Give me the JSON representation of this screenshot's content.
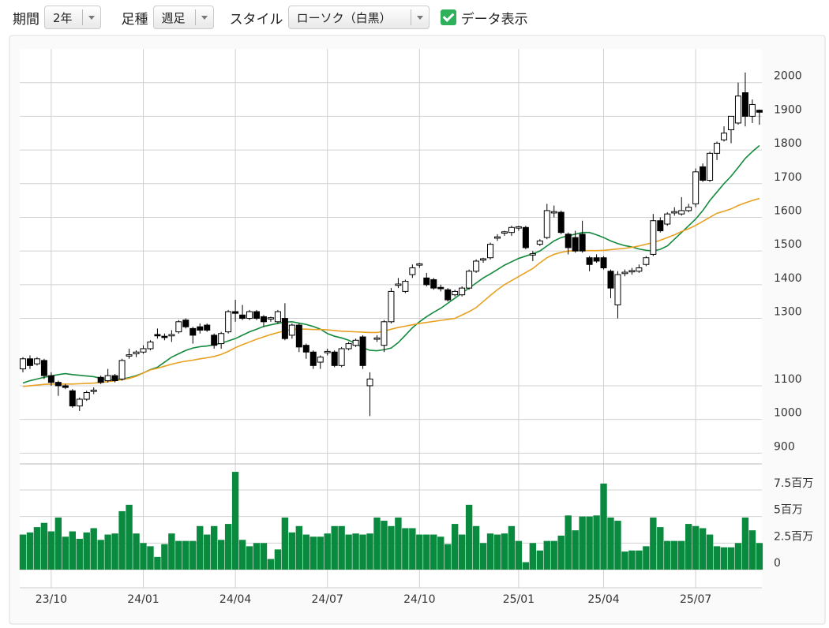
{
  "toolbar": {
    "period_label": "期間",
    "period": "2年",
    "interval_label": "足種",
    "interval": "週足",
    "style_label": "スタイル",
    "style": "ローソク（白黒）",
    "data_toggle": "データ表示"
  },
  "chart_data": [
    {
      "type": "candlestick",
      "up_color": "#ffffff",
      "down_color": "#000000",
      "grid": true,
      "categories": [
        null,
        null,
        null,
        null,
        "23/10",
        null,
        null,
        null,
        null,
        null,
        null,
        null,
        null,
        null,
        null,
        null,
        null,
        "24/01",
        null,
        null,
        null,
        null,
        null,
        null,
        null,
        null,
        null,
        null,
        null,
        null,
        "24/04",
        null,
        null,
        null,
        null,
        null,
        null,
        null,
        null,
        null,
        null,
        null,
        null,
        "24/07",
        null,
        null,
        null,
        null,
        null,
        null,
        null,
        null,
        null,
        null,
        null,
        null,
        "24/10",
        null,
        null,
        null,
        null,
        null,
        null,
        null,
        null,
        null,
        null,
        null,
        null,
        null,
        "25/01",
        null,
        null,
        null,
        null,
        null,
        null,
        null,
        null,
        null,
        null,
        null,
        "25/04",
        null,
        null,
        null,
        null,
        null,
        null,
        null,
        null,
        null,
        null,
        null,
        null,
        "25/07",
        null,
        null,
        null,
        null,
        null,
        null,
        null,
        null,
        null
      ],
      "open": [
        1150,
        1180,
        1165,
        1175,
        1130,
        1110,
        1100,
        1085,
        1040,
        1060,
        1083,
        1125,
        1115,
        1130,
        1120,
        1188,
        1195,
        1200,
        1210,
        1252,
        1247,
        1248,
        1260,
        1295,
        1270,
        1275,
        1280,
        1250,
        1225,
        1260,
        1320,
        1310,
        1300,
        1320,
        1305,
        1298,
        1290,
        1300,
        1250,
        1280,
        1220,
        1200,
        1170,
        1198,
        1200,
        1160,
        1210,
        1220,
        1245,
        1100,
        1238,
        1220,
        1290,
        1398,
        1380,
        1430,
        1458,
        1420,
        1415,
        1392,
        1385,
        1370,
        1370,
        1390,
        1440,
        1473,
        1480,
        1538,
        1553,
        1555,
        1568,
        1570,
        1488,
        1520,
        1540,
        1613,
        1615,
        1550,
        1540,
        1550,
        1480,
        1480,
        1480,
        1440,
        1340,
        1433,
        1438,
        1440,
        1460,
        1490,
        1590,
        1580,
        1613,
        1610,
        1620,
        1640,
        1750,
        1710,
        1790,
        1830,
        1860,
        1880,
        1970,
        1900,
        1918
      ],
      "high": [
        1185,
        1190,
        1185,
        1180,
        1140,
        1115,
        1105,
        1090,
        1065,
        1085,
        1095,
        1130,
        1150,
        1135,
        1180,
        1210,
        1205,
        1220,
        1235,
        1270,
        1255,
        1265,
        1295,
        1300,
        1275,
        1285,
        1285,
        1255,
        1260,
        1325,
        1355,
        1340,
        1325,
        1325,
        1310,
        1305,
        1325,
        1345,
        1285,
        1285,
        1225,
        1205,
        1190,
        1210,
        1205,
        1215,
        1230,
        1240,
        1250,
        1140,
        1250,
        1295,
        1390,
        1420,
        1415,
        1460,
        1465,
        1435,
        1420,
        1400,
        1390,
        1385,
        1395,
        1445,
        1475,
        1480,
        1525,
        1550,
        1560,
        1575,
        1575,
        1575,
        1500,
        1535,
        1640,
        1635,
        1620,
        1555,
        1560,
        1590,
        1485,
        1490,
        1485,
        1445,
        1440,
        1445,
        1450,
        1460,
        1485,
        1610,
        1600,
        1615,
        1630,
        1660,
        1640,
        1745,
        1760,
        1795,
        1825,
        1870,
        1900,
        2000,
        2030,
        1950,
        1920
      ],
      "low": [
        1140,
        1150,
        1160,
        1120,
        1100,
        1070,
        1090,
        1035,
        1025,
        1055,
        1075,
        1105,
        1110,
        1110,
        1115,
        1180,
        1185,
        1195,
        1205,
        1240,
        1235,
        1230,
        1255,
        1270,
        1225,
        1255,
        1260,
        1210,
        1210,
        1255,
        1290,
        1295,
        1295,
        1295,
        1275,
        1290,
        1285,
        1235,
        1240,
        1200,
        1180,
        1150,
        1150,
        1190,
        1155,
        1155,
        1205,
        1215,
        1150,
        1010,
        1230,
        1200,
        1285,
        1390,
        1375,
        1420,
        1450,
        1395,
        1385,
        1380,
        1350,
        1365,
        1365,
        1385,
        1435,
        1465,
        1475,
        1530,
        1545,
        1545,
        1560,
        1505,
        1470,
        1515,
        1535,
        1600,
        1550,
        1490,
        1495,
        1495,
        1440,
        1465,
        1445,
        1360,
        1300,
        1425,
        1430,
        1435,
        1455,
        1485,
        1555,
        1575,
        1605,
        1605,
        1615,
        1630,
        1705,
        1705,
        1770,
        1825,
        1820,
        1875,
        1870,
        1880,
        1875
      ],
      "close": [
        1180,
        1160,
        1180,
        1130,
        1110,
        1100,
        1095,
        1040,
        1060,
        1080,
        1087,
        1110,
        1130,
        1115,
        1175,
        1192,
        1200,
        1210,
        1230,
        1248,
        1243,
        1252,
        1290,
        1275,
        1250,
        1265,
        1265,
        1220,
        1255,
        1320,
        1315,
        1300,
        1320,
        1300,
        1290,
        1302,
        1320,
        1240,
        1280,
        1215,
        1200,
        1160,
        1185,
        1202,
        1160,
        1210,
        1225,
        1235,
        1160,
        1120,
        1242,
        1290,
        1380,
        1402,
        1410,
        1450,
        1462,
        1400,
        1390,
        1388,
        1355,
        1380,
        1390,
        1440,
        1470,
        1477,
        1520,
        1542,
        1557,
        1570,
        1572,
        1510,
        1492,
        1530,
        1620,
        1617,
        1555,
        1510,
        1500,
        1500,
        1460,
        1470,
        1450,
        1390,
        1430,
        1437,
        1442,
        1450,
        1480,
        1590,
        1560,
        1610,
        1617,
        1620,
        1630,
        1735,
        1710,
        1790,
        1820,
        1850,
        1900,
        1960,
        1900,
        1935,
        1912
      ],
      "series": [
        {
          "color": "#138a3c",
          "values": [
            1108,
            1115,
            1120,
            1125,
            1129,
            1133,
            1136,
            1133,
            1131,
            1129,
            1127,
            1122,
            1118,
            1117,
            1120,
            1124,
            1130,
            1138,
            1148,
            1155,
            1170,
            1185,
            1195,
            1205,
            1212,
            1216,
            1218,
            1222,
            1226,
            1233,
            1240,
            1250,
            1260,
            1268,
            1276,
            1281,
            1285,
            1289,
            1290,
            1286,
            1282,
            1276,
            1268,
            1255,
            1247,
            1242,
            1235,
            1225,
            1213,
            1205,
            1204,
            1207,
            1212,
            1228,
            1250,
            1272,
            1290,
            1305,
            1318,
            1330,
            1345,
            1360,
            1375,
            1390,
            1405,
            1420,
            1432,
            1445,
            1458,
            1468,
            1478,
            1485,
            1492,
            1500,
            1515,
            1530,
            1540,
            1545,
            1550,
            1555,
            1555,
            1548,
            1540,
            1530,
            1522,
            1516,
            1512,
            1506,
            1502,
            1500,
            1505,
            1515,
            1535,
            1555,
            1575,
            1595,
            1620,
            1650,
            1675,
            1700,
            1722,
            1748,
            1775,
            1795,
            1813
          ]
        },
        {
          "color": "#e8a020",
          "values": [
            1098,
            1100,
            1102,
            1104,
            1105,
            1105,
            1105,
            1105,
            1106,
            1107,
            1108,
            1110,
            1112,
            1115,
            1118,
            1122,
            1128,
            1138,
            1147,
            1152,
            1158,
            1164,
            1169,
            1173,
            1176,
            1180,
            1183,
            1187,
            1193,
            1202,
            1213,
            1222,
            1230,
            1238,
            1245,
            1252,
            1258,
            1263,
            1267,
            1268,
            1268,
            1267,
            1267,
            1266,
            1264,
            1262,
            1261,
            1260,
            1259,
            1258,
            1258,
            1262,
            1268,
            1273,
            1277,
            1281,
            1285,
            1288,
            1291,
            1294,
            1297,
            1300,
            1310,
            1320,
            1332,
            1350,
            1368,
            1385,
            1400,
            1412,
            1424,
            1436,
            1448,
            1465,
            1480,
            1490,
            1496,
            1500,
            1501,
            1501,
            1501,
            1501,
            1502,
            1504,
            1506,
            1508,
            1511,
            1515,
            1520,
            1525,
            1532,
            1540,
            1548,
            1558,
            1566,
            1576,
            1588,
            1600,
            1612,
            1618,
            1625,
            1635,
            1643,
            1650,
            1656
          ]
        }
      ],
      "ylim": [
        875,
        2100
      ],
      "yticks": [
        900,
        1000,
        1100,
        1300,
        1400,
        1500,
        1600,
        1700,
        1800,
        1900,
        2000
      ]
    },
    {
      "type": "bar",
      "color": "#0a8a3f",
      "grid": true,
      "values": [
        3.3,
        3.5,
        4.0,
        4.4,
        3.6,
        4.9,
        3.1,
        3.6,
        2.9,
        3.5,
        3.9,
        2.8,
        3.3,
        3.4,
        5.5,
        6.1,
        3.4,
        2.5,
        2.2,
        1.2,
        2.4,
        3.4,
        2.7,
        2.7,
        2.7,
        4.1,
        3.3,
        4.1,
        2.8,
        4.3,
        9.2,
        2.8,
        2.2,
        2.5,
        2.5,
        1.0,
        1.9,
        4.9,
        3.5,
        4.1,
        3.3,
        3.1,
        3.1,
        3.4,
        4.1,
        4.1,
        3.3,
        3.4,
        3.3,
        3.4,
        4.9,
        4.6,
        4.1,
        4.9,
        3.9,
        3.9,
        3.3,
        3.3,
        3.3,
        3.1,
        2.4,
        4.3,
        3.3,
        6.1,
        4.1,
        2.5,
        3.4,
        3.3,
        3.4,
        4.1,
        2.7,
        0.7,
        2.5,
        1.8,
        2.7,
        2.7,
        3.2,
        5.1,
        3.7,
        5.0,
        5.0,
        5.1,
        8.1,
        4.9,
        4.6,
        1.7,
        1.8,
        1.8,
        2.2,
        4.9,
        4.0,
        2.7,
        2.7,
        2.7,
        4.3,
        4.1,
        3.9,
        3.3,
        2.2,
        2.1,
        2.1,
        2.5,
        4.9,
        3.7,
        2.5
      ],
      "ylim": [
        0,
        9.8
      ],
      "yticks": [
        0,
        {
          "value": 2.5,
          "label": "2.5百万"
        },
        {
          "value": 5,
          "label": "5百万"
        },
        {
          "value": 7.5,
          "label": "7.5百万"
        }
      ]
    }
  ]
}
